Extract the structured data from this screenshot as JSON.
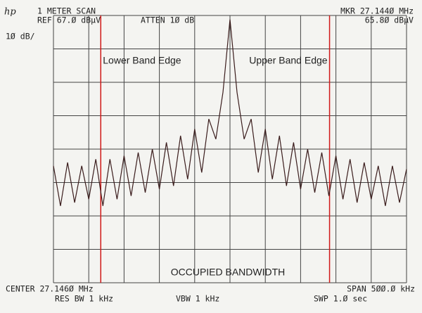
{
  "chart_data": {
    "type": "line",
    "logo": "hp",
    "header": {
      "mode": "1 METER SCAN",
      "ref": "REF 67.Ø dBµV",
      "atten": "ATTEN 1Ø dB",
      "marker_freq": "MKR 27.144Ø MHz",
      "marker_level": "65.8Ø dBµV",
      "scale": "1Ø dB/"
    },
    "footer": {
      "center": "CENTER 27.146Ø MHz",
      "span": "SPAN 5ØØ.Ø kHz",
      "rbw": "RES BW 1 kHz",
      "vbw": "VBW 1 kHz",
      "sweep": "SWP 1.Ø  sec"
    },
    "annotation": "OCCUPIED BANDWIDTH",
    "band_edges": [
      {
        "label": "Lower Band Edge",
        "x": 26.963,
        "color": "#d01818"
      },
      {
        "label": "Upper Band Edge",
        "x": 27.287,
        "color": "#d01818"
      }
    ],
    "xlim": [
      26.896,
      27.396
    ],
    "ylim": [
      -13,
      67
    ],
    "xticks": [
      26.896,
      26.946,
      26.996,
      27.046,
      27.096,
      27.146,
      27.196,
      27.246,
      27.296,
      27.346,
      27.396
    ],
    "yticks": [
      -13,
      -3,
      7,
      17,
      27,
      37,
      47,
      57,
      67
    ],
    "grid": true,
    "series": [
      {
        "color": "#3a1c1c",
        "x": [
          26.896,
          26.906,
          26.916,
          26.926,
          26.936,
          26.946,
          26.956,
          26.966,
          26.976,
          26.986,
          26.996,
          27.006,
          27.016,
          27.026,
          27.036,
          27.046,
          27.056,
          27.066,
          27.076,
          27.086,
          27.096,
          27.106,
          27.116,
          27.126,
          27.136,
          27.146,
          27.156,
          27.166,
          27.176,
          27.186,
          27.196,
          27.206,
          27.216,
          27.226,
          27.236,
          27.246,
          27.256,
          27.266,
          27.276,
          27.286,
          27.296,
          27.306,
          27.316,
          27.326,
          27.336,
          27.346,
          27.356,
          27.366,
          27.376,
          27.386,
          27.396
        ],
        "values": [
          22,
          10,
          23,
          11,
          22,
          12,
          24,
          10,
          24,
          12,
          25,
          13,
          26,
          14,
          27,
          15,
          29,
          16,
          31,
          18,
          33,
          20,
          36,
          30,
          44,
          65.8,
          44,
          30,
          36,
          20,
          33,
          18,
          31,
          16,
          29,
          15,
          27,
          14,
          26,
          13,
          25,
          12,
          24,
          11,
          23,
          12,
          22,
          10,
          22,
          11,
          21
        ]
      }
    ]
  }
}
